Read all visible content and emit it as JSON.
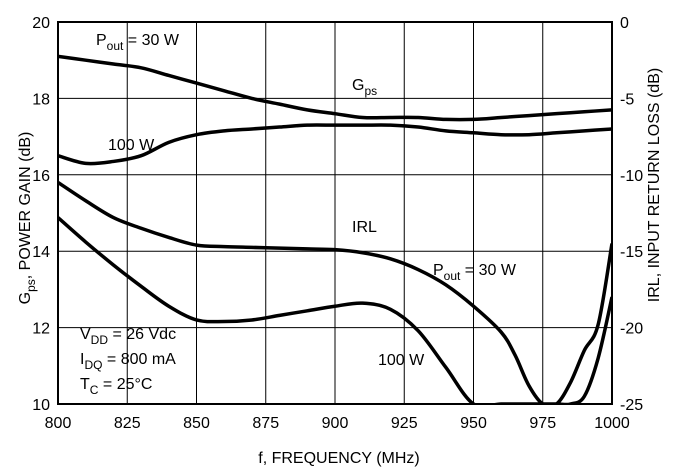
{
  "chart_data": {
    "type": "line",
    "title": "",
    "xlabel": "f, FREQUENCY (MHz)",
    "ylabel_left": {
      "base": "G",
      "sub": "ps",
      "rest": ",  POWER GAIN (dB)"
    },
    "ylabel_right": "IRL,  INPUT RETURN LOSS (dB)",
    "xlim": [
      800,
      1000
    ],
    "ylim_left": [
      10,
      20
    ],
    "ylim_right": [
      -25,
      0
    ],
    "grid": true,
    "x_ticks": [
      "800",
      "825",
      "850",
      "875",
      "900",
      "925",
      "950",
      "975",
      "1000"
    ],
    "y_left_ticks": [
      "10",
      "12",
      "14",
      "16",
      "18",
      "20"
    ],
    "y_right_ticks": [
      "-25",
      "-20",
      "-15",
      "-10",
      "-5",
      "0"
    ],
    "series": [
      {
        "axis": "left",
        "x": [
          800,
          810,
          820,
          830,
          840,
          850,
          860,
          870,
          880,
          890,
          900,
          910,
          920,
          930,
          940,
          950,
          960,
          970,
          980,
          990,
          1000
        ],
        "y": [
          19.1,
          19.0,
          18.9,
          18.8,
          18.6,
          18.4,
          18.2,
          18.0,
          17.85,
          17.7,
          17.6,
          17.5,
          17.5,
          17.5,
          17.45,
          17.45,
          17.5,
          17.55,
          17.6,
          17.65,
          17.7
        ]
      },
      {
        "axis": "left",
        "x": [
          800,
          810,
          820,
          830,
          840,
          850,
          860,
          870,
          880,
          890,
          900,
          910,
          920,
          930,
          940,
          950,
          960,
          970,
          980,
          990,
          1000
        ],
        "y": [
          16.5,
          16.3,
          16.35,
          16.5,
          16.85,
          17.05,
          17.15,
          17.2,
          17.25,
          17.3,
          17.3,
          17.3,
          17.3,
          17.25,
          17.15,
          17.1,
          17.05,
          17.05,
          17.1,
          17.15,
          17.2
        ]
      },
      {
        "axis": "right",
        "x": [
          800,
          810,
          820,
          830,
          840,
          850,
          860,
          870,
          880,
          890,
          900,
          910,
          920,
          930,
          940,
          950,
          960,
          965,
          970,
          975,
          980,
          985,
          990,
          995,
          1000
        ],
        "y": [
          -10.5,
          -11.7,
          -12.8,
          -13.5,
          -14.1,
          -14.6,
          -14.7,
          -14.75,
          -14.8,
          -14.85,
          -14.9,
          -15.1,
          -15.5,
          -16.2,
          -17.2,
          -18.6,
          -20.3,
          -21.8,
          -23.8,
          -25.0,
          -25.0,
          -23.6,
          -21.5,
          -19.8,
          -14.5
        ]
      },
      {
        "axis": "right",
        "x": [
          800,
          810,
          820,
          830,
          840,
          850,
          860,
          870,
          880,
          890,
          900,
          910,
          920,
          930,
          940,
          950,
          960,
          970,
          980,
          985,
          990,
          995,
          1000
        ],
        "y": [
          -12.8,
          -14.4,
          -15.9,
          -17.3,
          -18.6,
          -19.5,
          -19.6,
          -19.5,
          -19.2,
          -18.9,
          -18.6,
          -18.4,
          -18.8,
          -20.2,
          -22.6,
          -25.0,
          -25.0,
          -25.0,
          -25.0,
          -25.0,
          -24.5,
          -22.0,
          -18.0
        ]
      }
    ],
    "annotations": {
      "pout30_top": {
        "base": "P",
        "sub": "out",
        "rest": " = 30 W"
      },
      "gps": {
        "base": "G",
        "sub": "ps"
      },
      "w100_top": "100 W",
      "irl": "IRL",
      "pout30_bottom": {
        "base": "P",
        "sub": "out",
        "rest": " = 30 W"
      },
      "w100_bottom": "100 W",
      "conditions": [
        {
          "base": "V",
          "sub": "DD",
          "rest": " = 26 Vdc"
        },
        {
          "base": "I",
          "sub": "DQ",
          "rest": " = 800 mA"
        },
        {
          "base": "T",
          "sub": "C",
          "rest": " = 25°C"
        }
      ]
    }
  }
}
